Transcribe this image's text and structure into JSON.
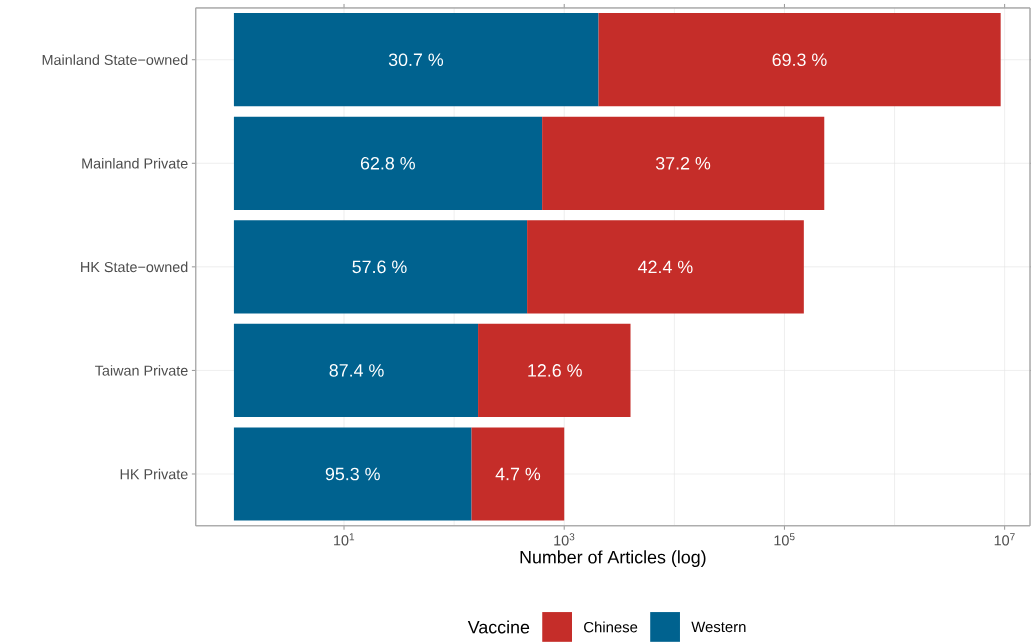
{
  "chart_data": {
    "type": "bar",
    "orientation": "horizontal",
    "log": "x",
    "grid": true,
    "legend": "bottom",
    "xlabel": "Number of Articles (log)",
    "legend_title": "Vaccine",
    "categories": [
      "Mainland State−owned",
      "Mainland Private",
      "HK State−owned",
      "Taiwan Private",
      "HK Private"
    ],
    "xlim": [
      0.45,
      17000000
    ],
    "xticks": [
      {
        "value": 10,
        "label": "10$^{1}$"
      },
      {
        "value": 1000,
        "label": "10$^{3}$"
      },
      {
        "value": 100000,
        "label": "10$^{5}$"
      },
      {
        "value": 10000000,
        "label": "10$^{7}$"
      }
    ],
    "series": [
      {
        "name": "Western",
        "color": "#00628f",
        "base": [
          1,
          1,
          1,
          1,
          1
        ],
        "values": [
          2049,
          629,
          459,
          164,
          143
        ]
      },
      {
        "name": "Chinese",
        "color": "#c52d29",
        "base": [
          2050,
          630,
          460,
          165,
          144
        ],
        "values": [
          9197950,
          229370,
          149540,
          3835,
          856
        ]
      }
    ],
    "annotations": [
      {
        "text": "30.7 %",
        "x": 45,
        "y": "Mainland State−owned"
      },
      {
        "text": "69.3 %",
        "x": 137000,
        "y": "Mainland State−owned"
      },
      {
        "text": "62.8 %",
        "x": 25,
        "y": "Mainland Private"
      },
      {
        "text": "37.2 %",
        "x": 12000,
        "y": "Mainland Private"
      },
      {
        "text": "57.6 %",
        "x": 21,
        "y": "HK State−owned"
      },
      {
        "text": "42.4 %",
        "x": 8300,
        "y": "HK State−owned"
      },
      {
        "text": "87.4 %",
        "x": 13,
        "y": "Taiwan Private"
      },
      {
        "text": "12.6 %",
        "x": 820,
        "y": "Taiwan Private"
      },
      {
        "text": "95.3 %",
        "x": 12,
        "y": "HK Private"
      },
      {
        "text": "4.7 %",
        "x": 380,
        "y": "HK Private"
      }
    ]
  }
}
